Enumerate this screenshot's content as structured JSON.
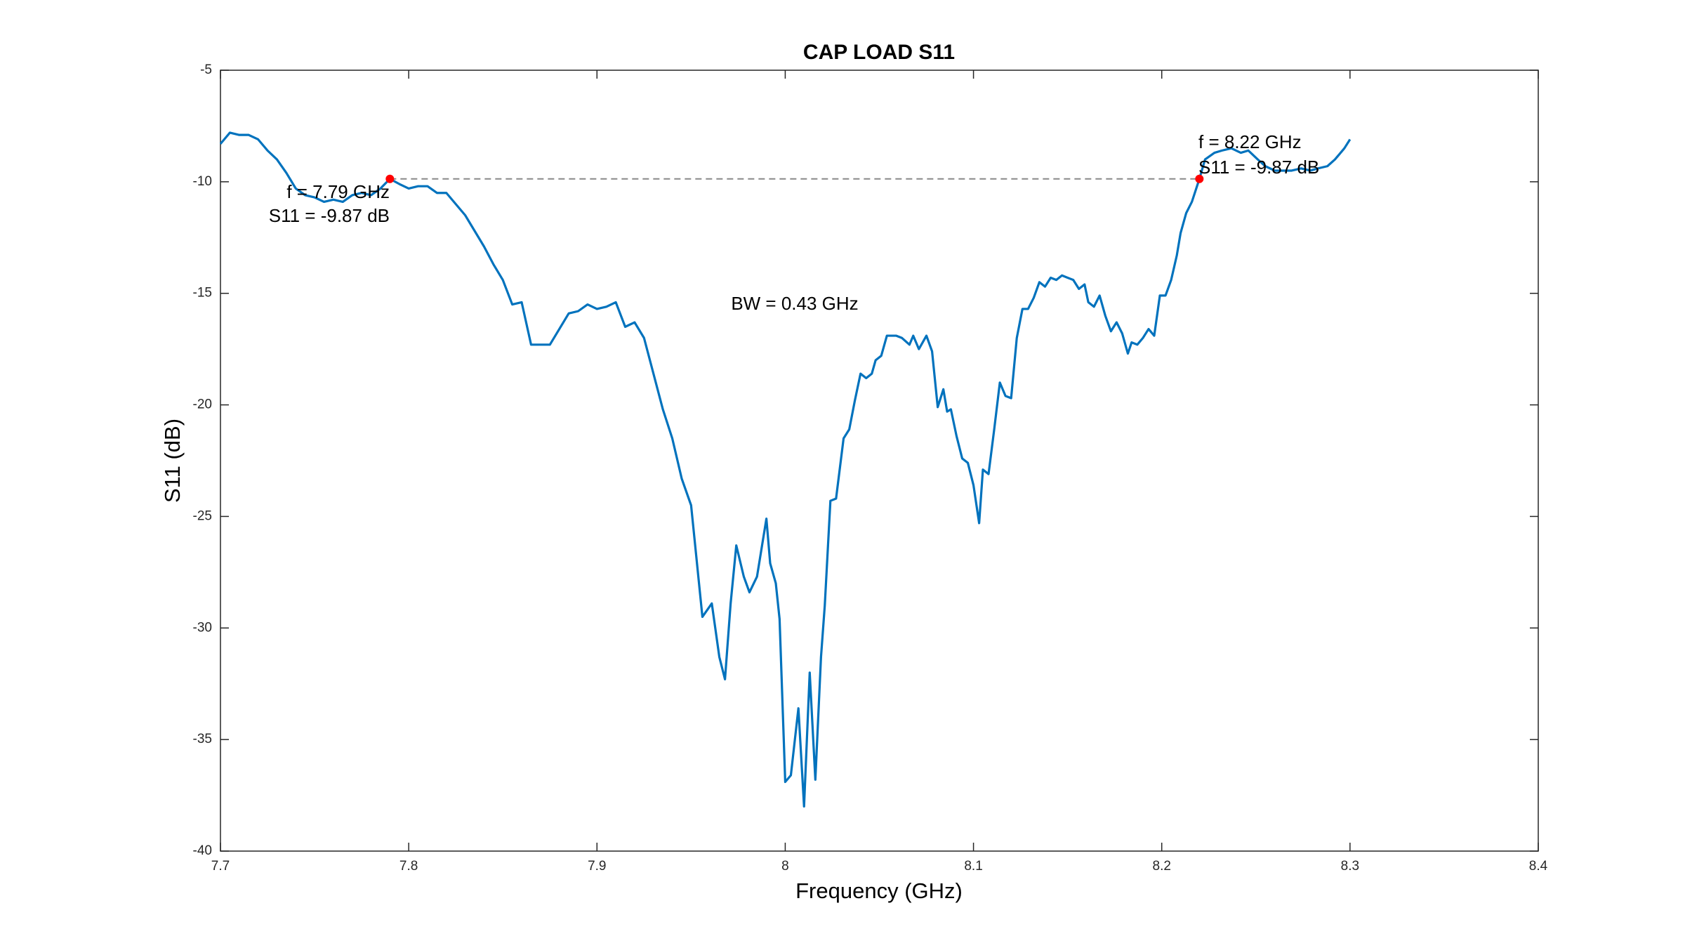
{
  "chart_data": {
    "type": "line",
    "title": "CAP LOAD S11",
    "xlabel": "Frequency (GHz)",
    "ylabel": "S11 (dB)",
    "xlim": [
      7.7,
      8.4
    ],
    "ylim": [
      -40,
      -5
    ],
    "xticks": [
      7.7,
      7.8,
      7.9,
      8,
      8.1,
      8.2,
      8.3,
      8.4
    ],
    "yticks": [
      -40,
      -35,
      -30,
      -25,
      -20,
      -15,
      -10,
      -5
    ],
    "grid": false,
    "series": [
      {
        "color": "#0072bd",
        "x": [
          7.7,
          7.705,
          7.71,
          7.715,
          7.72,
          7.725,
          7.73,
          7.735,
          7.74,
          7.745,
          7.75,
          7.755,
          7.76,
          7.765,
          7.77,
          7.775,
          7.78,
          7.785,
          7.79,
          7.795,
          7.8,
          7.805,
          7.81,
          7.815,
          7.82,
          7.825,
          7.83,
          7.835,
          7.84,
          7.845,
          7.85,
          7.855,
          7.86,
          7.865,
          7.87,
          7.875,
          7.88,
          7.885,
          7.89,
          7.895,
          7.9,
          7.905,
          7.91,
          7.915,
          7.92,
          7.925,
          7.93,
          7.935,
          7.94,
          7.945,
          7.95,
          7.956,
          7.961,
          7.965,
          7.968,
          7.971,
          7.974,
          7.978,
          7.981,
          7.985,
          7.99,
          7.992,
          7.995,
          7.997,
          8.0,
          8.003,
          8.007,
          8.01,
          8.013,
          8.016,
          8.019,
          8.021,
          8.024,
          8.027,
          8.031,
          8.034,
          8.037,
          8.04,
          8.043,
          8.046,
          8.048,
          8.051,
          8.054,
          8.059,
          8.062,
          8.066,
          8.068,
          8.071,
          8.075,
          8.078,
          8.081,
          8.084,
          8.086,
          8.088,
          8.091,
          8.094,
          8.097,
          8.1,
          8.103,
          8.105,
          8.108,
          8.111,
          8.114,
          8.117,
          8.12,
          8.123,
          8.126,
          8.129,
          8.132,
          8.135,
          8.138,
          8.141,
          8.144,
          8.147,
          8.15,
          8.153,
          8.156,
          8.159,
          8.161,
          8.164,
          8.167,
          8.17,
          8.173,
          8.176,
          8.179,
          8.182,
          8.184,
          8.187,
          8.19,
          8.193,
          8.196,
          8.199,
          8.202,
          8.205,
          8.208,
          8.21,
          8.213,
          8.216,
          8.22,
          8.223,
          8.228,
          8.232,
          8.237,
          8.242,
          8.246,
          8.251,
          8.255,
          8.26,
          8.265,
          8.269,
          8.274,
          8.279,
          8.283,
          8.288,
          8.292,
          8.297,
          8.3
        ],
        "values": [
          -8.3,
          -7.8,
          -7.9,
          -7.9,
          -8.1,
          -8.6,
          -9.0,
          -9.6,
          -10.3,
          -10.6,
          -10.7,
          -10.9,
          -10.8,
          -10.9,
          -10.6,
          -10.5,
          -10.6,
          -10.3,
          -9.87,
          -10.1,
          -10.3,
          -10.2,
          -10.2,
          -10.5,
          -10.5,
          -11.0,
          -11.5,
          -12.2,
          -12.9,
          -13.7,
          -14.4,
          -15.5,
          -15.4,
          -17.3,
          -17.3,
          -17.3,
          -16.6,
          -15.9,
          -15.8,
          -15.5,
          -15.7,
          -15.6,
          -15.4,
          -16.5,
          -16.3,
          -17.0,
          -18.6,
          -20.2,
          -21.5,
          -23.3,
          -24.5,
          -29.5,
          -28.9,
          -31.3,
          -32.3,
          -28.9,
          -26.3,
          -27.7,
          -28.4,
          -27.7,
          -25.1,
          -27.1,
          -28.0,
          -29.6,
          -36.9,
          -36.6,
          -33.6,
          -38.0,
          -32.0,
          -36.8,
          -31.3,
          -29.0,
          -24.3,
          -24.2,
          -21.5,
          -21.1,
          -19.8,
          -18.6,
          -18.8,
          -18.6,
          -18.0,
          -17.8,
          -16.9,
          -16.9,
          -17.0,
          -17.3,
          -16.9,
          -17.5,
          -16.9,
          -17.6,
          -20.1,
          -19.3,
          -20.3,
          -20.2,
          -21.4,
          -22.4,
          -22.6,
          -23.6,
          -25.3,
          -22.9,
          -23.1,
          -21.1,
          -19.0,
          -19.6,
          -19.7,
          -17.0,
          -15.7,
          -15.7,
          -15.2,
          -14.5,
          -14.7,
          -14.3,
          -14.4,
          -14.2,
          -14.3,
          -14.4,
          -14.8,
          -14.6,
          -15.4,
          -15.6,
          -15.1,
          -16.0,
          -16.7,
          -16.3,
          -16.8,
          -17.7,
          -17.2,
          -17.3,
          -17.0,
          -16.6,
          -16.9,
          -15.1,
          -15.1,
          -14.4,
          -13.3,
          -12.3,
          -11.4,
          -10.9,
          -9.87,
          -9.0,
          -8.7,
          -8.6,
          -8.5,
          -8.7,
          -8.6,
          -9.0,
          -9.3,
          -9.5,
          -9.5,
          -9.5,
          -9.4,
          -9.5,
          -9.4,
          -9.3,
          -9.0,
          -8.5,
          -8.1
        ]
      }
    ],
    "markers": {
      "color": "#ff0000",
      "x": [
        7.79,
        8.22
      ],
      "values": [
        -9.87,
        -9.87
      ]
    },
    "annotations": [
      "f = 7.79 GHz",
      "S11 = -9.87 dB",
      "f = 8.22 GHz",
      "S11 = -9.87 dB",
      "BW = 0.43 GHz"
    ]
  }
}
